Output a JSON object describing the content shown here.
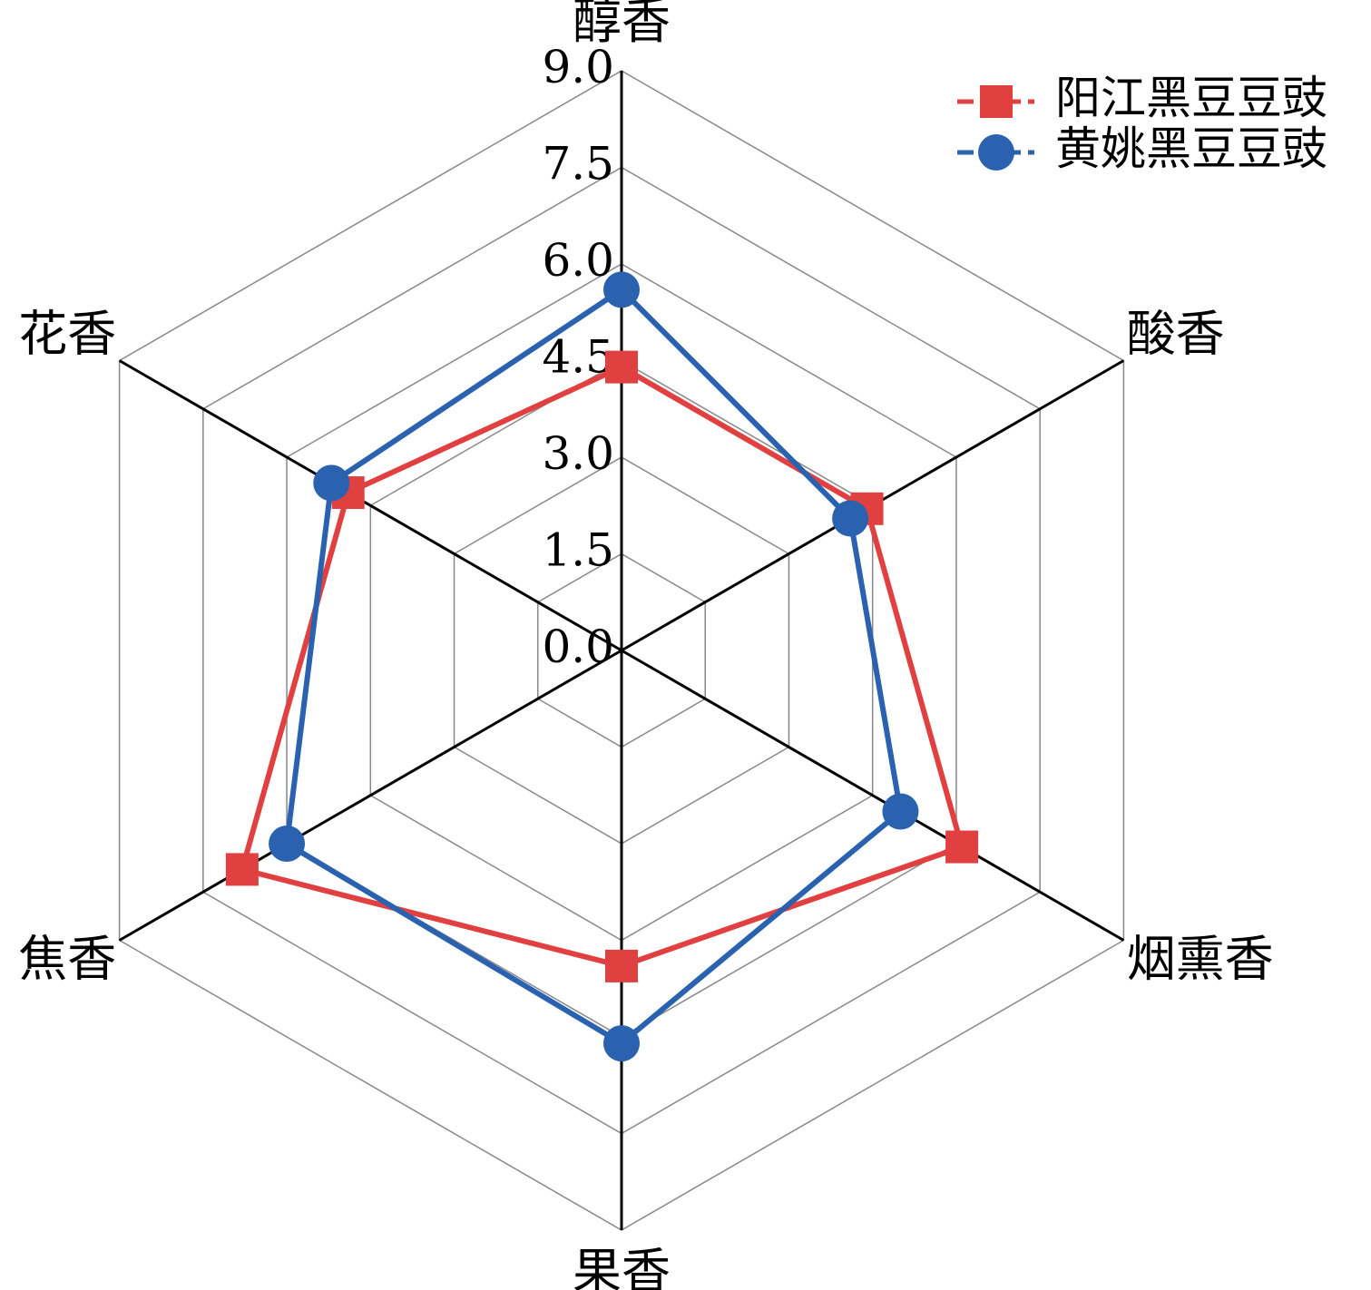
{
  "chart_data": {
    "type": "radar",
    "categories": [
      "醇香",
      "酸香",
      "烟熏香",
      "果香",
      "焦香",
      "花香"
    ],
    "series": [
      {
        "name": "阳江黑豆豆豉",
        "color": "#e04040",
        "marker": "square",
        "values": [
          4.4,
          4.4,
          6.1,
          4.9,
          6.8,
          4.9
        ]
      },
      {
        "name": "黄姚黑豆豆豉",
        "color": "#2a62b0",
        "marker": "circle",
        "values": [
          5.6,
          4.1,
          5.0,
          6.1,
          6.0,
          5.2
        ]
      }
    ],
    "rlim": [
      0,
      9
    ],
    "rticks": [
      {
        "value": 0,
        "label": "0.0"
      },
      1.5,
      {
        "value": 3,
        "label": "3.0"
      },
      4.5,
      {
        "value": 6,
        "label": "6.0"
      },
      7.5,
      {
        "value": 9,
        "label": "9.0"
      }
    ],
    "grid": true,
    "legend": "top-right"
  }
}
